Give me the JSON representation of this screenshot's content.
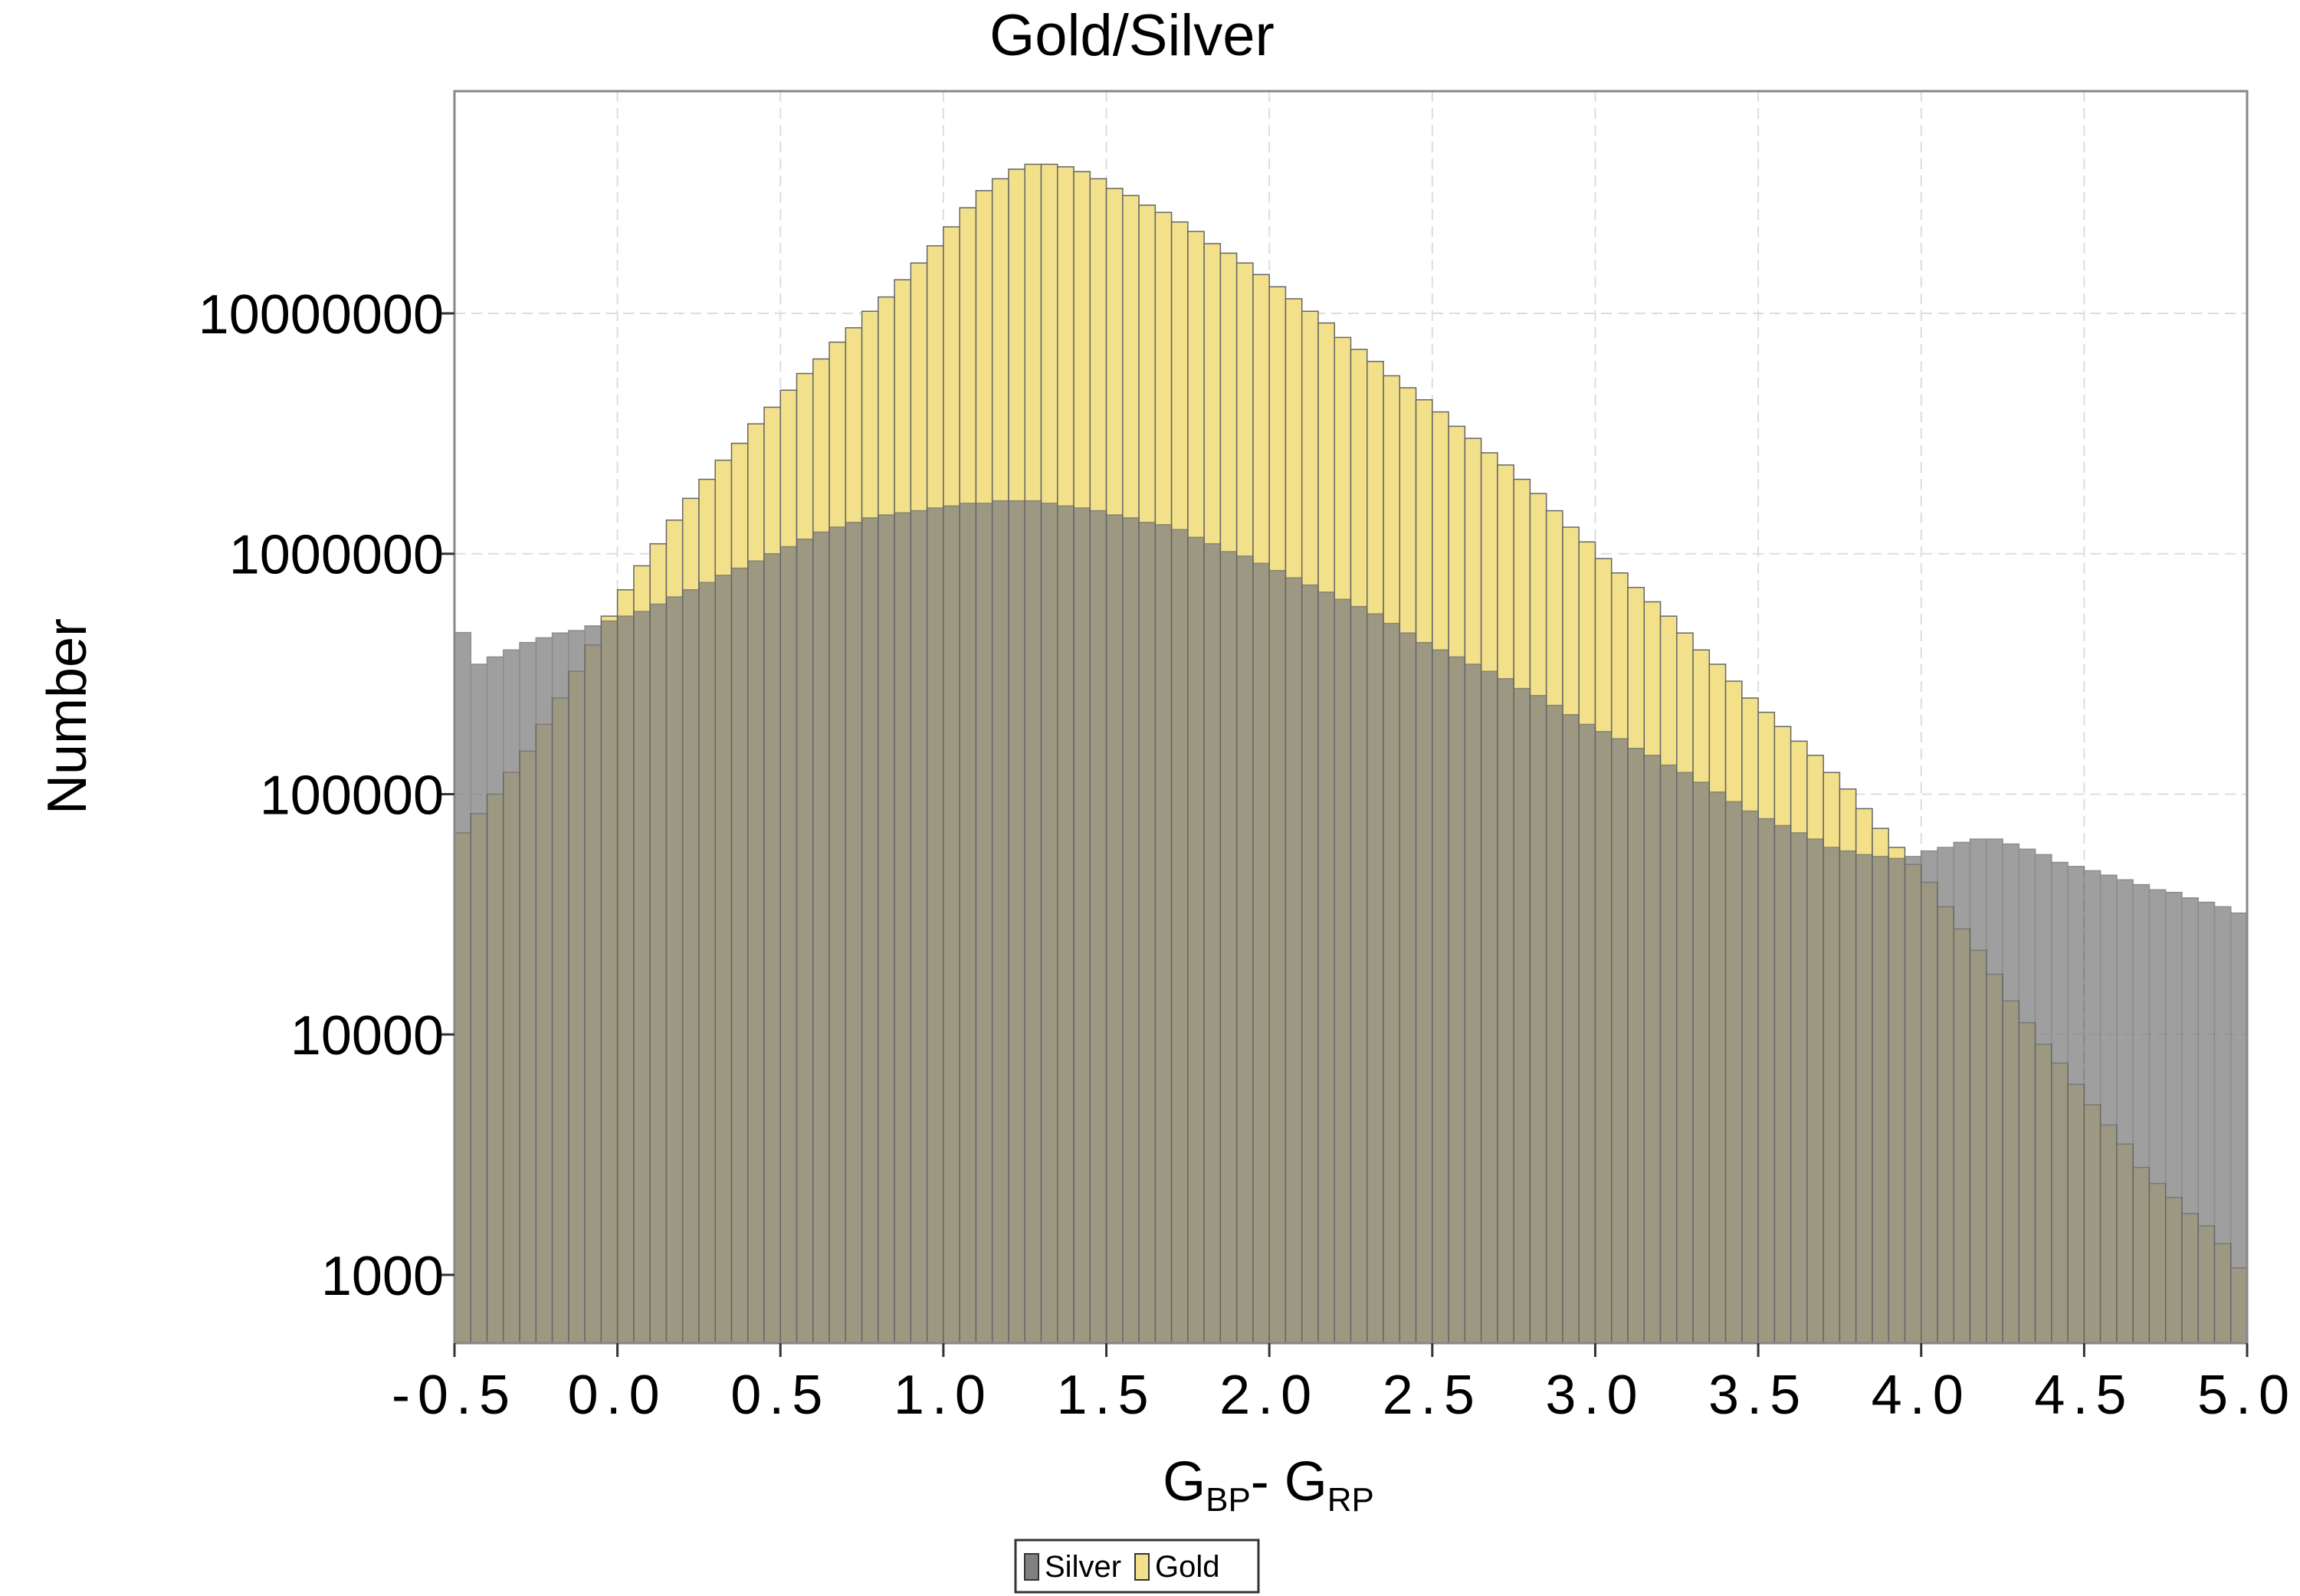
{
  "chart_data": {
    "type": "histogram",
    "title": "Gold/Silver",
    "xlabel": [
      "G",
      "BP",
      "- G",
      "RP"
    ],
    "ylabel": "Number",
    "bins": [
      -0.5,
      -0.45,
      -0.4,
      -0.35,
      -0.3,
      -0.25,
      -0.2,
      -0.15,
      -0.1,
      -0.05,
      0,
      0.05,
      0.1,
      0.15,
      0.2,
      0.25,
      0.3,
      0.35,
      0.4,
      0.45,
      0.5,
      0.55,
      0.6,
      0.65,
      0.7,
      0.75,
      0.8,
      0.85,
      0.9,
      0.95,
      1,
      1.05,
      1.1,
      1.15,
      1.2,
      1.25,
      1.3,
      1.35,
      1.4,
      1.45,
      1.5,
      1.55,
      1.6,
      1.65,
      1.7,
      1.75,
      1.8,
      1.85,
      1.9,
      1.95,
      2,
      2.05,
      2.1,
      2.15,
      2.2,
      2.25,
      2.3,
      2.35,
      2.4,
      2.45,
      2.5,
      2.55,
      2.6,
      2.65,
      2.7,
      2.75,
      2.8,
      2.85,
      2.9,
      2.95,
      3,
      3.05,
      3.1,
      3.15,
      3.2,
      3.25,
      3.3,
      3.35,
      3.4,
      3.45,
      3.5,
      3.55,
      3.6,
      3.65,
      3.7,
      3.75,
      3.8,
      3.85,
      3.9,
      3.95,
      4,
      4.05,
      4.1,
      4.15,
      4.2,
      4.25,
      4.3,
      4.35,
      4.4,
      4.45,
      4.5,
      4.55,
      4.6,
      4.65,
      4.7,
      4.75,
      4.8,
      4.85,
      4.9,
      4.95,
      5
    ],
    "series": [
      {
        "name": "Silver",
        "color": "#808080",
        "values": [
          470000,
          347000,
          372000,
          398000,
          427000,
          447000,
          468000,
          479000,
          501000,
          525000,
          550000,
          575000,
          617000,
          661000,
          708000,
          759000,
          813000,
          871000,
          933000,
          1000000,
          1070000,
          1150000,
          1230000,
          1290000,
          1350000,
          1410000,
          1450000,
          1480000,
          1510000,
          1550000,
          1580000,
          1620000,
          1620000,
          1660000,
          1660000,
          1660000,
          1620000,
          1580000,
          1550000,
          1510000,
          1450000,
          1410000,
          1350000,
          1320000,
          1260000,
          1170000,
          1100000,
          1020000,
          977000,
          912000,
          851000,
          794000,
          741000,
          692000,
          646000,
          603000,
          562000,
          513000,
          468000,
          427000,
          398000,
          372000,
          347000,
          324000,
          302000,
          275000,
          257000,
          234000,
          214000,
          195000,
          182000,
          170000,
          155000,
          145000,
          132000,
          123000,
          112000,
          102000,
          93000,
          85000,
          79000,
          74000,
          69000,
          65000,
          60000,
          58000,
          56000,
          55000,
          54000,
          55000,
          58000,
          60000,
          63000,
          65000,
          65000,
          62000,
          59000,
          56000,
          52000,
          50000,
          48000,
          46000,
          44000,
          42000,
          40000,
          39000,
          37000,
          35500,
          34000,
          32000
        ]
      },
      {
        "name": "Gold",
        "color": "#f2e08a",
        "values": [
          69000,
          83000,
          100000,
          123000,
          151000,
          195000,
          251000,
          324000,
          417000,
          550000,
          708000,
          891000,
          1100000,
          1380000,
          1700000,
          2040000,
          2450000,
          2880000,
          3470000,
          4070000,
          4790000,
          5620000,
          6460000,
          7590000,
          8710000,
          10200000,
          11700000,
          13800000,
          16200000,
          19100000,
          22900000,
          27500000,
          32400000,
          36300000,
          39800000,
          41700000,
          41700000,
          40700000,
          38900000,
          36300000,
          33100000,
          30900000,
          28200000,
          26300000,
          24000000,
          21900000,
          19500000,
          17800000,
          16200000,
          14500000,
          12900000,
          11500000,
          10200000,
          9120000,
          7940000,
          7080000,
          6310000,
          5500000,
          4900000,
          4370000,
          3890000,
          3390000,
          3020000,
          2630000,
          2340000,
          2040000,
          1780000,
          1510000,
          1290000,
          1120000,
          955000,
          832000,
          724000,
          631000,
          550000,
          468000,
          398000,
          347000,
          295000,
          251000,
          219000,
          191000,
          166000,
          145000,
          123000,
          105000,
          87000,
          72000,
          60000,
          51000,
          43000,
          34000,
          27500,
          22400,
          17800,
          13800,
          11200,
          9100,
          7600,
          6200,
          5100,
          4200,
          3500,
          2800,
          2400,
          2100,
          1800,
          1600,
          1350,
          1070
        ]
      }
    ],
    "xlim": [
      -0.5,
      5.0
    ],
    "ylim": [
      520,
      84000000
    ],
    "log_y": true,
    "grid": true,
    "xticks": [
      -0.5,
      {
        "value": 0,
        "label": "0.0"
      },
      0.5,
      {
        "value": 1,
        "label": "1.0"
      },
      1.5,
      {
        "value": 2,
        "label": "2.0"
      },
      2.5,
      {
        "value": 3,
        "label": "3.0"
      },
      3.5,
      {
        "value": 4,
        "label": "4.0"
      },
      4.5,
      {
        "value": 5,
        "label": "5.0"
      }
    ],
    "yticks": [
      1000,
      10000,
      100000,
      1000000,
      10000000
    ],
    "legend": "bottom"
  }
}
